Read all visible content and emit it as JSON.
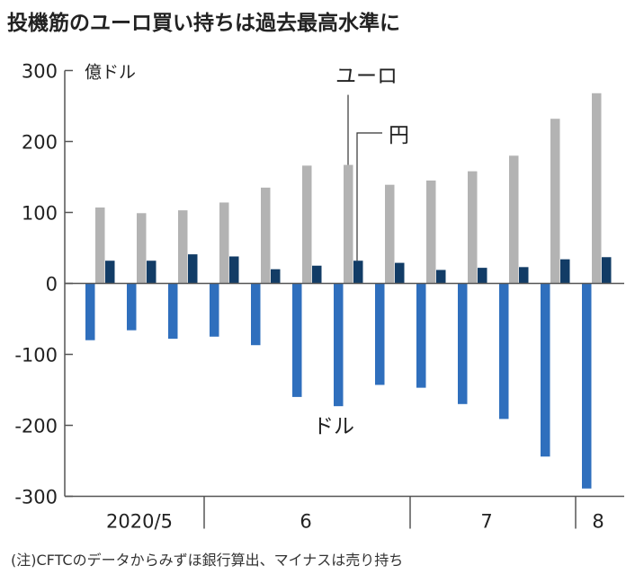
{
  "title": "投機筋のユーロ買い持ちは過去最高水準に",
  "note": "(注)CFTCのデータからみずほ銀行算出、マイナスは売り持ち",
  "chart_data": {
    "type": "bar",
    "title": "投機筋のユーロ買い持ちは過去最高水準に",
    "ylabel": "億ドル",
    "ylim": [
      -300,
      300
    ],
    "yticks": [
      300,
      200,
      100,
      0,
      -100,
      -200,
      -300
    ],
    "ytick_labels": [
      "300",
      "200",
      "100",
      "0",
      "-100",
      "-200",
      "-300"
    ],
    "month_labels": [
      "2020/5",
      "6",
      "7",
      "8"
    ],
    "grid": false,
    "series": [
      {
        "name": "ドル",
        "color": "#2f6fbd",
        "values": [
          -80,
          -66,
          -78,
          -75,
          -87,
          -160,
          -173,
          -143,
          -147,
          -170,
          -191,
          -244,
          -289
        ]
      },
      {
        "name": "ユーロ",
        "color": "#b3b3b3",
        "values": [
          107,
          99,
          103,
          114,
          135,
          166,
          167,
          139,
          145,
          158,
          180,
          232,
          268
        ]
      },
      {
        "name": "円",
        "color": "#123c66",
        "values": [
          32,
          32,
          41,
          38,
          20,
          25,
          32,
          29,
          19,
          22,
          23,
          34,
          37
        ]
      }
    ]
  }
}
